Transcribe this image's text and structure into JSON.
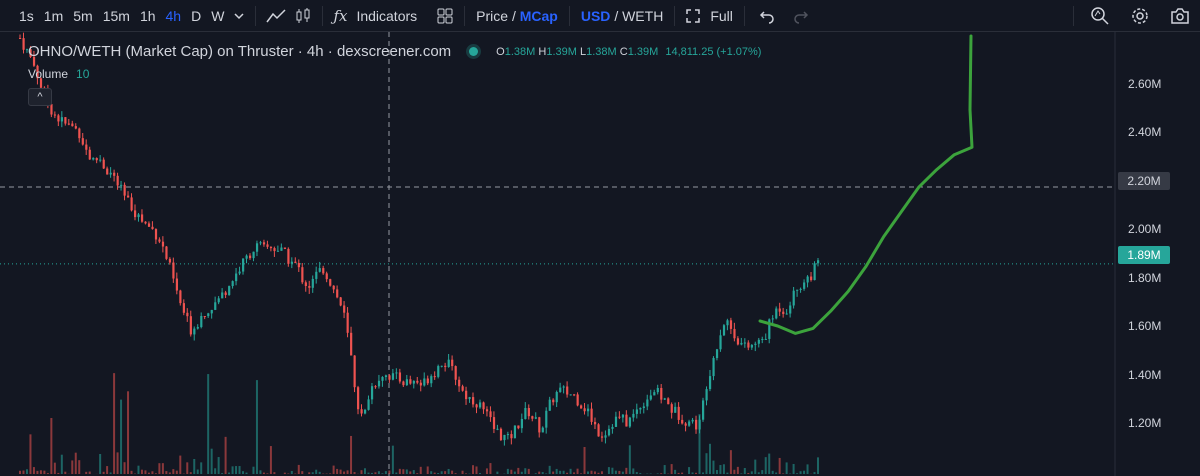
{
  "toolbar": {
    "intervals": [
      "1s",
      "1m",
      "5m",
      "15m",
      "1h",
      "4h",
      "D",
      "W"
    ],
    "active_interval": "4h",
    "indicators_label": "Indicators",
    "price_label": "Price",
    "slash": "/",
    "mcap_label": "MCap",
    "usd_label": "USD",
    "weth_label": "WETH",
    "full_label": "Full",
    "icons": [
      "chevron-down-icon",
      "line-chart-icon",
      "candles-icon",
      "fx-icon",
      "templates-icon",
      "fullscreen-icon",
      "undo-icon",
      "redo-icon",
      "zoom-icon",
      "settings-icon",
      "camera-icon"
    ]
  },
  "legend": {
    "title": "OHNO/WETH (Market Cap) on Thruster · 4h · dexscreener.com",
    "o_key": "O",
    "o": "1.38M",
    "h_key": "H",
    "h": "1.39M",
    "l_key": "L",
    "l": "1.38M",
    "c_key": "C",
    "c": "1.39M",
    "change": "14,811.25 (+1.07%)",
    "volume_label": "Volume",
    "volume_value": "10",
    "collapse_glyph": "^"
  },
  "axis": {
    "labels": [
      "2.60M",
      "2.40M",
      "2.20M",
      "2.00M",
      "1.80M",
      "1.60M",
      "1.40M",
      "1.20M"
    ],
    "crosshair_value": "2.20M",
    "last_price": "1.89M"
  },
  "colors": {
    "background": "#131722",
    "up": "#26a69a",
    "down": "#ef5350",
    "drawing": "#3ca33c",
    "accent": "#2962ff"
  },
  "chart_data": {
    "type": "candlestick",
    "ylim": [
      1.1,
      2.8
    ],
    "price_points_M": [
      2.8,
      2.75,
      2.7,
      2.62,
      2.55,
      2.5,
      2.47,
      2.45,
      2.44,
      2.42,
      2.35,
      2.3,
      2.32,
      2.27,
      2.25,
      2.2,
      2.15,
      2.12,
      2.08,
      2.05,
      2.03,
      2.0,
      1.93,
      1.85,
      1.75,
      1.68,
      1.62,
      1.66,
      1.7,
      1.72,
      1.74,
      1.78,
      1.82,
      1.86,
      1.9,
      1.94,
      1.96,
      1.95,
      1.96,
      1.95,
      1.93,
      1.9,
      1.88,
      1.82,
      1.8,
      1.85,
      1.87,
      1.82,
      1.76,
      1.7,
      1.55,
      1.35,
      1.25,
      1.38,
      1.42,
      1.45,
      1.44,
      1.43,
      1.42,
      1.41,
      1.42,
      1.4,
      1.44,
      1.46,
      1.5,
      1.48,
      1.44,
      1.38,
      1.35,
      1.34,
      1.31,
      1.27,
      1.22,
      1.2,
      1.18,
      1.22,
      1.27,
      1.3,
      1.26,
      1.22,
      1.3,
      1.36,
      1.38,
      1.37,
      1.36,
      1.33,
      1.3,
      1.25,
      1.2,
      1.22,
      1.26,
      1.27,
      1.25,
      1.28,
      1.32,
      1.35,
      1.38,
      1.36,
      1.33,
      1.3,
      1.28,
      1.26,
      1.25,
      1.24,
      1.4,
      1.5,
      1.6,
      1.67,
      1.62,
      1.58,
      1.55,
      1.56,
      1.57,
      1.6,
      1.67,
      1.72,
      1.7,
      1.75,
      1.8,
      1.82,
      1.85,
      1.89
    ],
    "projection_points_M": [
      1.66,
      1.64,
      1.61,
      1.63,
      1.7,
      1.78,
      1.88,
      2.0,
      2.1,
      2.2,
      2.27,
      2.33,
      2.36
    ]
  }
}
